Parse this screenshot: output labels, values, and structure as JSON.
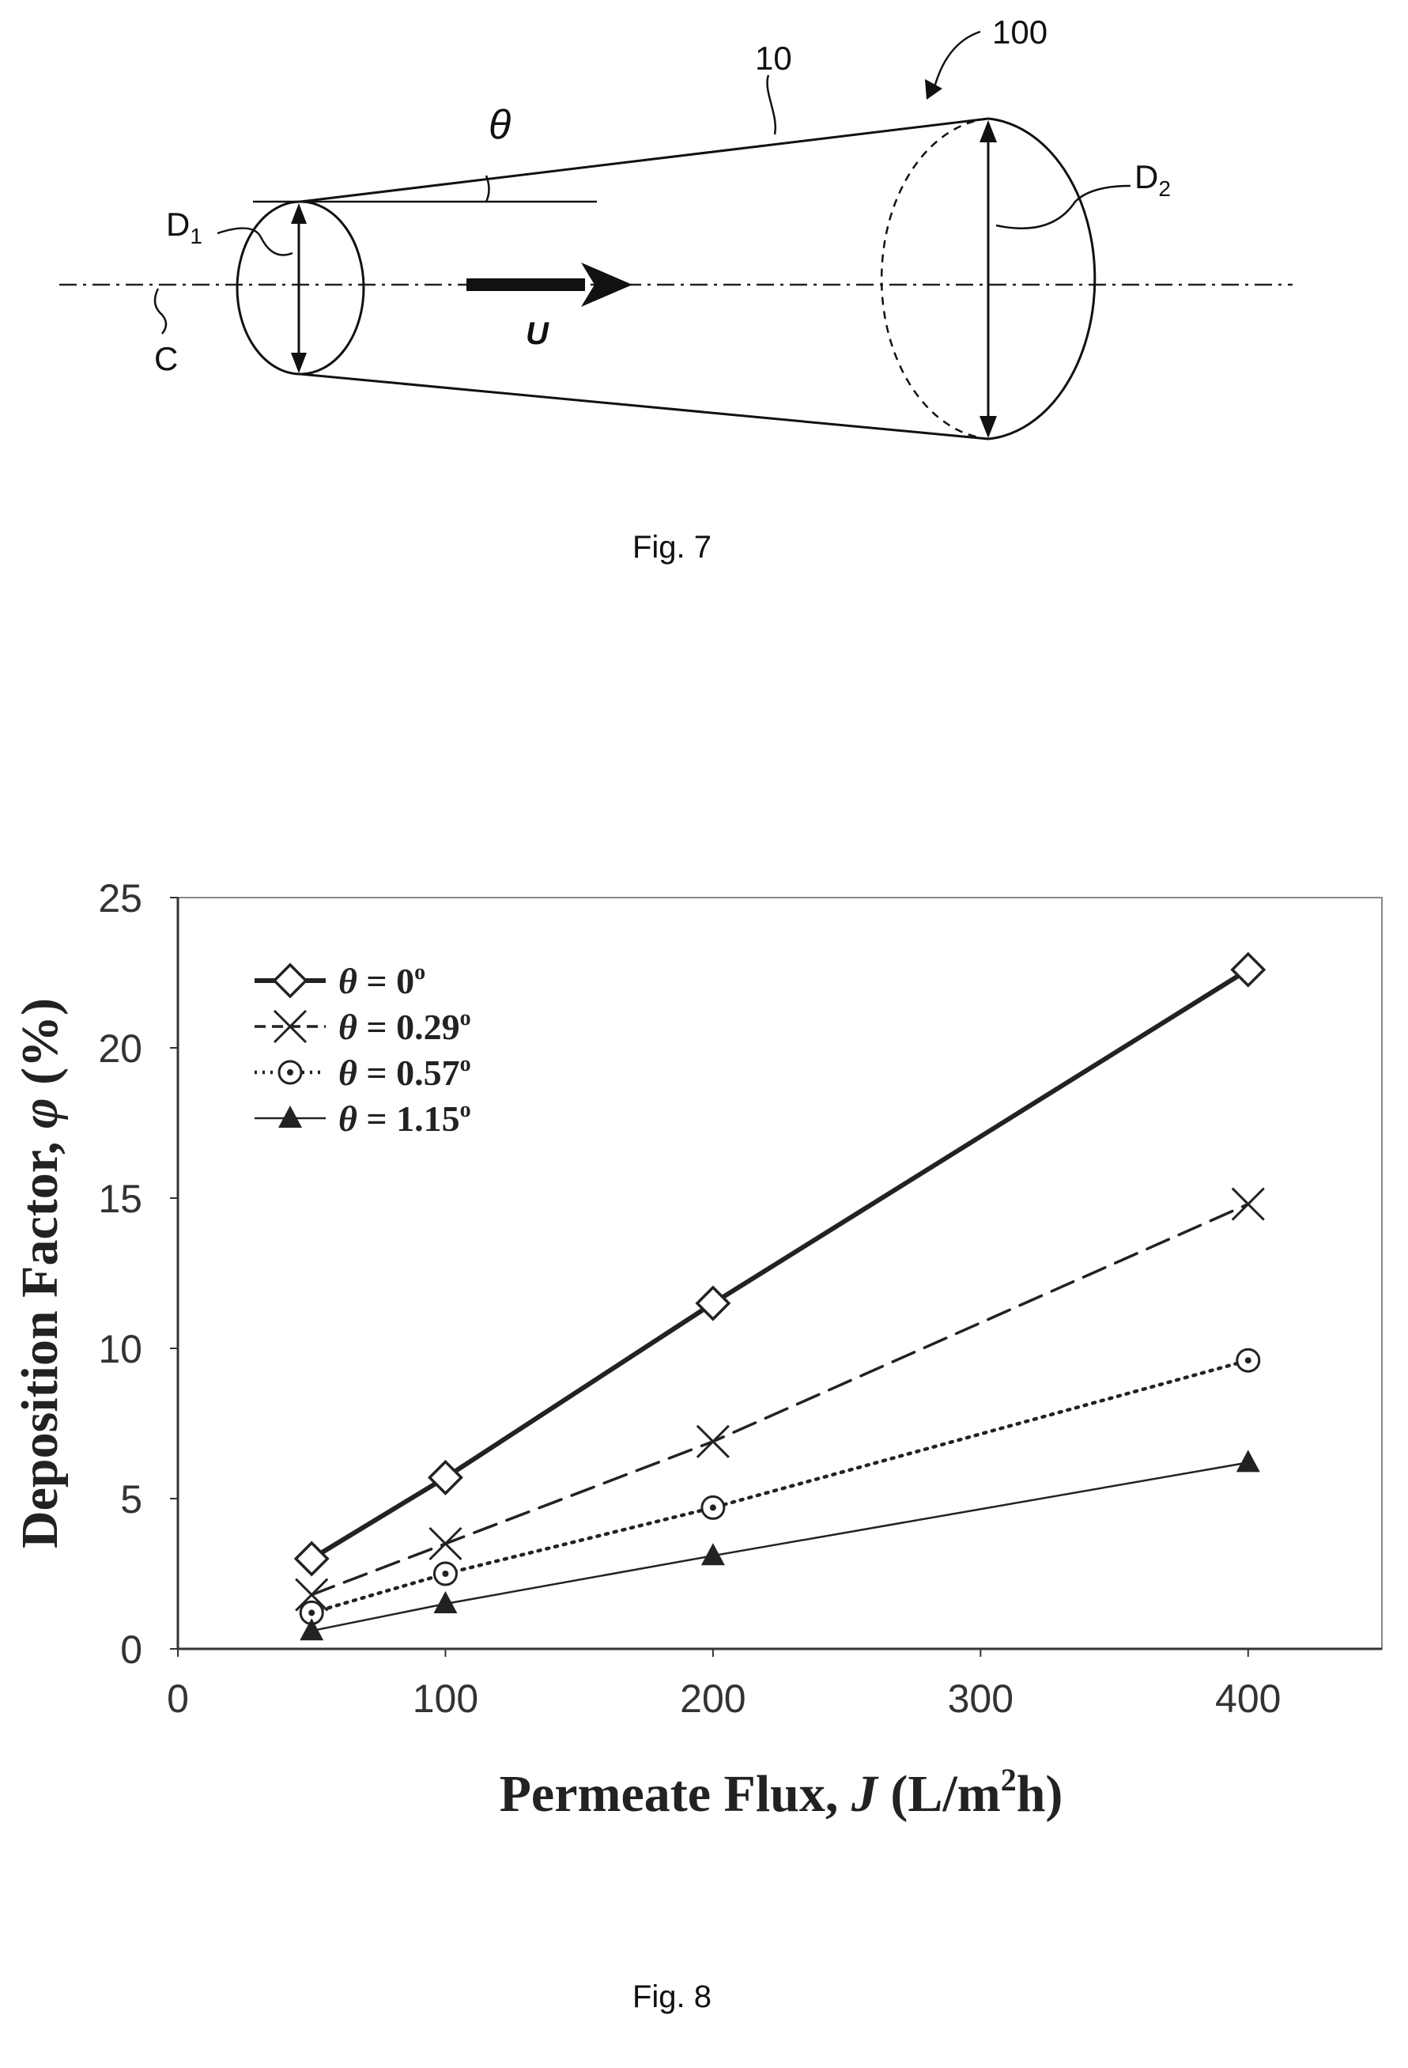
{
  "figure7": {
    "caption": "Fig. 7",
    "labels": {
      "ref_100": "100",
      "ref_10": "10",
      "theta": "θ",
      "d1": "D",
      "d1_sub": "1",
      "d2": "D",
      "d2_sub": "2",
      "c": "C",
      "u": "U"
    }
  },
  "figure8": {
    "caption": "Fig. 8"
  },
  "chart_data": {
    "type": "line",
    "xlabel": "Permeate Flux, J (L/m²h)",
    "xlabel_parts": {
      "pre": "Permeate Flux, ",
      "var": "J",
      "mid": " (L/m",
      "sup": "2",
      "post": "h)"
    },
    "ylabel": "Deposition Factor, φ (%)",
    "ylabel_parts": {
      "pre": "Deposition Factor, ",
      "var": "φ",
      "post": " (%)"
    },
    "xlim": [
      0,
      450
    ],
    "ylim": [
      0,
      25
    ],
    "xticks": [
      0,
      100,
      200,
      300,
      400
    ],
    "yticks": [
      0,
      5,
      10,
      15,
      20,
      25
    ],
    "legend_position": "top-left",
    "grid": false,
    "x": [
      50,
      100,
      200,
      400
    ],
    "series": [
      {
        "name": "θ = 0°",
        "legend": {
          "var": "θ",
          "eq": " = 0",
          "sup": "o"
        },
        "marker": "diamond",
        "line": "solid-thick",
        "color": "#222222",
        "values": [
          3.0,
          5.7,
          11.5,
          22.6
        ]
      },
      {
        "name": "θ = 0.29°",
        "legend": {
          "var": "θ",
          "eq": " = 0.29",
          "sup": "o"
        },
        "marker": "x",
        "line": "dashed",
        "color": "#222222",
        "values": [
          1.8,
          3.5,
          6.9,
          14.8
        ]
      },
      {
        "name": "θ = 0.57°",
        "legend": {
          "var": "θ",
          "eq": " = 0.57",
          "sup": "o"
        },
        "marker": "dotted-circle",
        "line": "dotted",
        "color": "#222222",
        "values": [
          1.2,
          2.5,
          4.7,
          9.6
        ]
      },
      {
        "name": "θ = 1.15°",
        "legend": {
          "var": "θ",
          "eq": " = 1.15",
          "sup": "o"
        },
        "marker": "triangle",
        "line": "solid-thin",
        "color": "#222222",
        "values": [
          0.6,
          1.5,
          3.1,
          6.2
        ]
      }
    ]
  }
}
